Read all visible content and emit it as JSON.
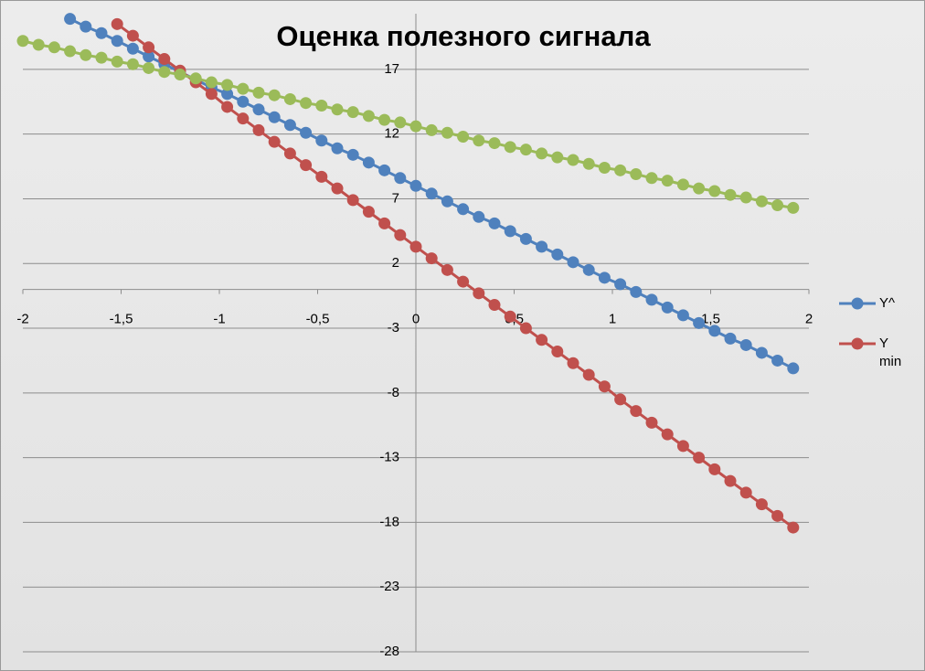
{
  "chart_data": {
    "type": "line",
    "title": "Оценка полезного сигнала",
    "x": [
      -2,
      -1.92,
      -1.84,
      -1.76,
      -1.68,
      -1.6,
      -1.52,
      -1.44,
      -1.36,
      -1.28,
      -1.2,
      -1.12,
      -1.04,
      -0.96,
      -0.88,
      -0.8,
      -0.72,
      -0.64,
      -0.56,
      -0.48,
      -0.4,
      -0.32,
      -0.24,
      -0.16,
      -0.08,
      0,
      0.08,
      0.16,
      0.24,
      0.32,
      0.4,
      0.48,
      0.56,
      0.64,
      0.72,
      0.8,
      0.88,
      0.96,
      1.04,
      1.12,
      1.2,
      1.28,
      1.36,
      1.44,
      1.52,
      1.6,
      1.68,
      1.76,
      1.84,
      1.92
    ],
    "series": [
      {
        "name": "Y^",
        "color": "#4f81bd",
        "values": [
          null,
          null,
          null,
          20.9,
          20.3,
          19.8,
          19.2,
          18.6,
          18.0,
          17.4,
          16.8,
          16.2,
          15.6,
          15.1,
          14.5,
          13.9,
          13.3,
          12.7,
          12.1,
          11.5,
          10.9,
          10.4,
          9.8,
          9.2,
          8.6,
          8.0,
          7.4,
          6.8,
          6.2,
          5.6,
          5.1,
          4.5,
          3.9,
          3.3,
          2.7,
          2.1,
          1.5,
          0.9,
          0.4,
          -0.2,
          -0.8,
          -1.4,
          -2.0,
          -2.6,
          -3.2,
          -3.8,
          -4.3,
          -4.9,
          -5.5,
          -6.1
        ]
      },
      {
        "name": "Y min",
        "color": "#c0504d",
        "values": [
          null,
          null,
          null,
          null,
          null,
          null,
          20.5,
          19.6,
          18.7,
          17.8,
          16.9,
          16.0,
          15.1,
          14.1,
          13.2,
          12.3,
          11.4,
          10.5,
          9.6,
          8.7,
          7.8,
          6.9,
          6.0,
          5.1,
          4.2,
          3.3,
          2.4,
          1.5,
          0.6,
          -0.3,
          -1.2,
          -2.1,
          -3.0,
          -3.9,
          -4.8,
          -5.7,
          -6.6,
          -7.5,
          -8.5,
          -9.4,
          -10.3,
          -11.2,
          -12.1,
          -13.0,
          -13.9,
          -14.8,
          -15.7,
          -16.6,
          -17.5,
          -18.4
        ]
      },
      {
        "color": "#9bbb59",
        "values": [
          19.2,
          18.9,
          18.7,
          18.4,
          18.1,
          17.9,
          17.6,
          17.4,
          17.1,
          16.8,
          16.6,
          16.3,
          16.0,
          15.8,
          15.5,
          15.2,
          15.0,
          14.7,
          14.4,
          14.2,
          13.9,
          13.7,
          13.4,
          13.1,
          12.9,
          12.6,
          12.3,
          12.1,
          11.8,
          11.5,
          11.3,
          11.0,
          10.8,
          10.5,
          10.2,
          10.0,
          9.7,
          9.4,
          9.2,
          8.9,
          8.6,
          8.4,
          8.1,
          7.8,
          7.6,
          7.3,
          7.1,
          6.8,
          6.5,
          6.3
        ]
      }
    ],
    "xlim": [
      -2,
      2
    ],
    "xticks": [
      -2,
      {
        "value": -1.5,
        "label": "-1,5"
      },
      -1,
      {
        "value": -0.5,
        "label": "-0,5"
      },
      0,
      {
        "value": 0.5,
        "label": "0,5"
      },
      1,
      {
        "value": 1.5,
        "label": "1,5"
      },
      2
    ],
    "ylim": [
      -28,
      21.3
    ],
    "yticks": [
      -28,
      -23,
      -18,
      -13,
      -8,
      -3,
      2,
      7,
      12,
      17
    ],
    "grid": true
  }
}
